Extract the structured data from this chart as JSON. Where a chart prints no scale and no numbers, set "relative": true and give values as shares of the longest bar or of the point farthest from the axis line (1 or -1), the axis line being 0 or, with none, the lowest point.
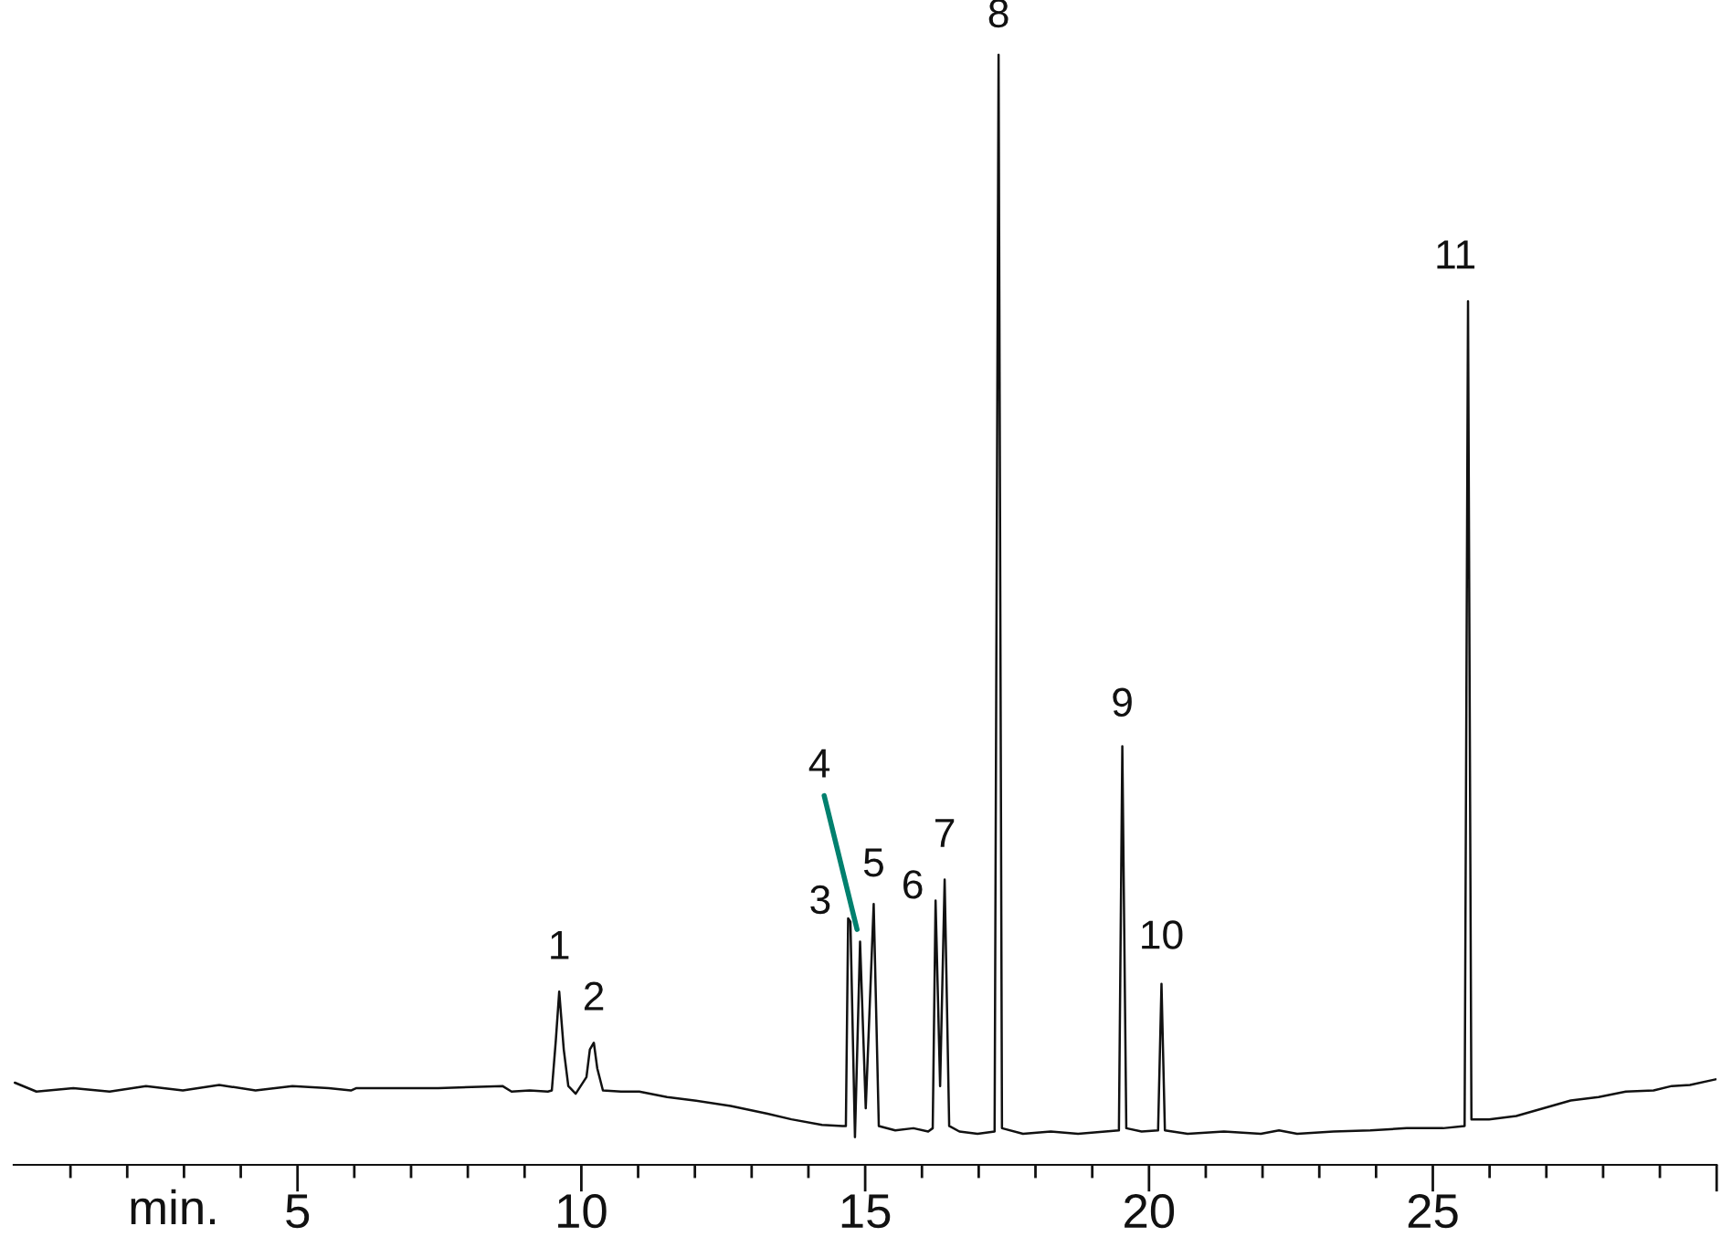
{
  "chart_data": {
    "type": "line",
    "relative": true,
    "xlabel": "min.",
    "xlim": [
      0,
      30
    ],
    "tick_labels": "x",
    "xticks": [
      {
        "value": 1,
        "label": null
      },
      {
        "value": 2,
        "label": null
      },
      {
        "value": 3,
        "label": null
      },
      {
        "value": 4,
        "label": null
      },
      5,
      {
        "value": 6,
        "label": null
      },
      {
        "value": 7,
        "label": null
      },
      {
        "value": 8,
        "label": null
      },
      {
        "value": 9,
        "label": null
      },
      10,
      {
        "value": 11,
        "label": null
      },
      {
        "value": 12,
        "label": null
      },
      {
        "value": 13,
        "label": null
      },
      {
        "value": 14,
        "label": null
      },
      15,
      {
        "value": 16,
        "label": null
      },
      {
        "value": 17,
        "label": null
      },
      {
        "value": 18,
        "label": null
      },
      {
        "value": 19,
        "label": null
      },
      20,
      {
        "value": 21,
        "label": null
      },
      {
        "value": 22,
        "label": null
      },
      {
        "value": 23,
        "label": null
      },
      {
        "value": 24,
        "label": null
      },
      25,
      {
        "value": 26,
        "label": null
      },
      {
        "value": 27,
        "label": null
      },
      {
        "value": 28,
        "label": null
      },
      {
        "value": 29,
        "label": null
      },
      {
        "value": 30,
        "label": null
      }
    ],
    "x": [
      0.02,
      0.4,
      1.05,
      1.69,
      2.33,
      2.98,
      3.62,
      4.26,
      4.91,
      5.55,
      5.94,
      6.03,
      7.48,
      8.61,
      8.77,
      9.09,
      9.41,
      9.48,
      9.55,
      9.61,
      9.69,
      9.77,
      9.9,
      10.09,
      10.15,
      10.22,
      10.28,
      10.38,
      10.7,
      11.02,
      11.51,
      11.99,
      12.63,
      13.28,
      13.7,
      14.24,
      14.6,
      14.66,
      14.7,
      14.74,
      14.82,
      14.91,
      15.01,
      15.15,
      15.24,
      15.53,
      15.85,
      16.11,
      16.19,
      16.24,
      16.32,
      16.4,
      16.48,
      16.66,
      16.98,
      17.28,
      17.35,
      17.41,
      17.78,
      18.27,
      18.75,
      19.23,
      19.47,
      19.53,
      19.6,
      19.87,
      20.16,
      20.22,
      20.28,
      20.68,
      21.32,
      21.97,
      22.29,
      22.61,
      23.25,
      23.9,
      24.54,
      25.18,
      25.56,
      25.62,
      25.68,
      25.99,
      26.47,
      26.95,
      27.43,
      27.92,
      28.4,
      28.89,
      29.21,
      29.53,
      29.98
    ],
    "series": [
      {
        "color": "#111111",
        "values": [
          0.074,
          0.066,
          0.069,
          0.066,
          0.071,
          0.067,
          0.072,
          0.067,
          0.071,
          0.069,
          0.067,
          0.069,
          0.069,
          0.071,
          0.066,
          0.067,
          0.066,
          0.067,
          0.112,
          0.156,
          0.104,
          0.071,
          0.064,
          0.079,
          0.104,
          0.11,
          0.087,
          0.067,
          0.066,
          0.066,
          0.061,
          0.058,
          0.053,
          0.046,
          0.041,
          0.036,
          0.035,
          0.035,
          0.222,
          0.219,
          0.025,
          0.201,
          0.051,
          0.235,
          0.035,
          0.031,
          0.033,
          0.03,
          0.033,
          0.238,
          0.071,
          0.257,
          0.035,
          0.03,
          0.028,
          0.03,
          1,
          0.033,
          0.028,
          0.03,
          0.028,
          0.03,
          0.031,
          0.377,
          0.033,
          0.03,
          0.031,
          0.163,
          0.031,
          0.028,
          0.03,
          0.028,
          0.031,
          0.028,
          0.03,
          0.031,
          0.033,
          0.033,
          0.035,
          0.778,
          0.041,
          0.041,
          0.044,
          0.051,
          0.058,
          0.061,
          0.066,
          0.067,
          0.071,
          0.072,
          0.077
        ]
      }
    ],
    "annotations": [
      {
        "text": "1",
        "x": 9.61,
        "y": 0.156
      },
      {
        "text": "2",
        "x": 10.22,
        "y": 0.11
      },
      {
        "text": "3",
        "x": 14.7,
        "y": 0.222
      },
      {
        "text": "4",
        "x": 14.91,
        "y": 0.201
      },
      {
        "text": "5",
        "x": 15.15,
        "y": 0.235
      },
      {
        "text": "6",
        "x": 16.24,
        "y": 0.238
      },
      {
        "text": "7",
        "x": 16.4,
        "y": 0.257
      },
      {
        "text": "8",
        "x": 17.35,
        "y": 1
      },
      {
        "text": "9",
        "x": 19.53,
        "y": 0.377
      },
      {
        "text": "10",
        "x": 20.22,
        "y": 0.163
      },
      {
        "text": "11",
        "x": 25.62,
        "y": 0.778
      }
    ]
  }
}
